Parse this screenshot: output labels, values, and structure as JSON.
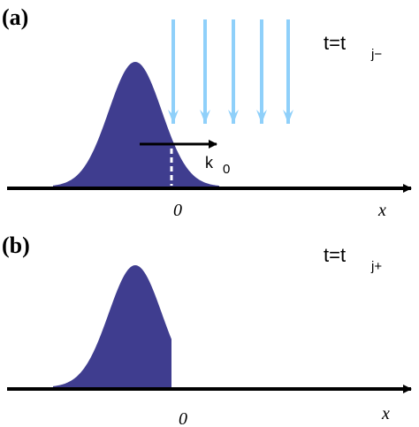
{
  "panel_a": {
    "label": "(a)",
    "time_label": "t=t",
    "time_subscript": "j−",
    "wave_vector_label": "k",
    "wave_vector_subscript": "0",
    "origin_label": "0",
    "axis_label": "x"
  },
  "panel_b": {
    "label": "(b)",
    "time_label": "t=t",
    "time_subscript": "j+",
    "origin_label": "0",
    "axis_label": "x"
  }
}
